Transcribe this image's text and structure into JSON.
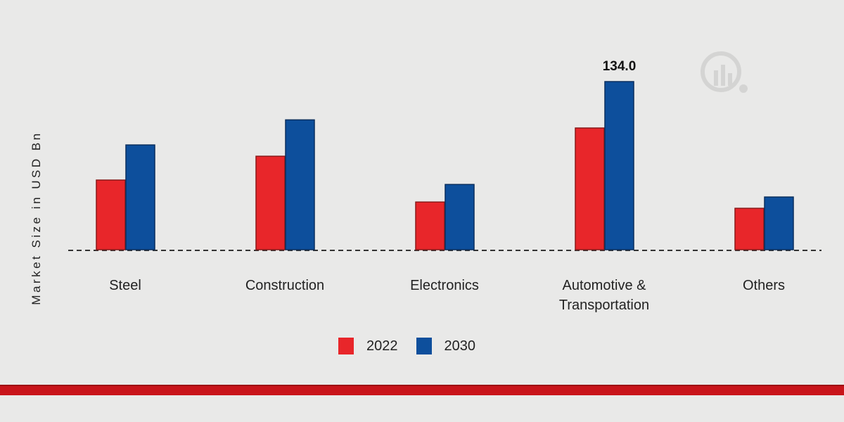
{
  "chart_data": {
    "type": "bar",
    "title": "",
    "xlabel": "",
    "ylabel": "Market Size in USD Bn",
    "categories": [
      "Steel",
      "Construction",
      "Electronics",
      "Automotive &\nTransportation",
      "Others"
    ],
    "series": [
      {
        "name": "2022",
        "color": "#e8262a",
        "values": [
          55.5,
          74.5,
          38.0,
          97.0,
          33.0
        ]
      },
      {
        "name": "2030",
        "color": "#0d4f9c",
        "values": [
          83.5,
          103.5,
          52.0,
          134.0,
          42.0
        ]
      }
    ],
    "data_labels": [
      {
        "series": "2030",
        "category": "Automotive &\nTransportation",
        "text": "134.0"
      }
    ],
    "ylim": [
      0,
      134
    ],
    "grid": false,
    "legend": "bottom-center"
  }
}
